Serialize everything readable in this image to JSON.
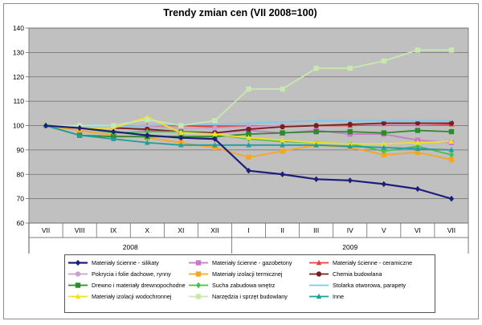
{
  "chart_data": {
    "type": "line",
    "title": "Trendy zmian cen (VII 2008=100)",
    "x": [
      "VII",
      "VIII",
      "IX",
      "X",
      "XI",
      "XII",
      "I",
      "II",
      "III",
      "IV",
      "V",
      "VI",
      "VII"
    ],
    "year_groups": [
      {
        "label": "2008",
        "from": 0,
        "to": 5
      },
      {
        "label": "2009",
        "from": 6,
        "to": 12
      }
    ],
    "ylim": [
      60,
      140
    ],
    "yticks": [
      60,
      70,
      80,
      90,
      100,
      110,
      120,
      130,
      140
    ],
    "grid": true,
    "legend": "bottom",
    "series": [
      {
        "name": "Materiały ścienne - silikaty",
        "color": "#1f1f7a",
        "marker": "diamond",
        "values": [
          100,
          99,
          97.5,
          96,
          95,
          94.5,
          81.5,
          80,
          78,
          77.5,
          76,
          74,
          70
        ]
      },
      {
        "name": "Materiały ścienne - gazobetony",
        "color": "#c879c8",
        "marker": "square",
        "values": [
          100,
          99.5,
          99.5,
          98,
          97.5,
          97,
          98,
          97,
          98,
          96.5,
          96.5,
          94,
          93
        ]
      },
      {
        "name": "Materiały ścienne - ceramiczne",
        "color": "#e8413b",
        "marker": "triangle",
        "values": [
          100,
          99.5,
          99.5,
          100,
          100,
          99.5,
          99.5,
          100,
          100,
          100,
          100.5,
          100.5,
          100.5
        ]
      },
      {
        "name": "Pokrycia i folie dachowe, rynny",
        "color": "#c7a0cf",
        "marker": "circle",
        "values": [
          100,
          99.5,
          100,
          99.5,
          99,
          99,
          99.5,
          100,
          100,
          100.5,
          100.5,
          100.5,
          101
        ]
      },
      {
        "name": "Materiały izolacji termicznej",
        "color": "#f5a623",
        "marker": "square",
        "values": [
          100,
          98,
          96,
          95,
          93,
          91,
          87,
          89.5,
          92,
          91,
          88,
          89,
          86
        ]
      },
      {
        "name": "Chemia budowlana",
        "color": "#7a1f1f",
        "marker": "circle",
        "values": [
          100,
          99.5,
          99,
          98.5,
          97.5,
          97,
          98.5,
          99.5,
          100,
          100.5,
          101,
          101,
          101
        ]
      },
      {
        "name": "Drewno i materiały drewnopochodne",
        "color": "#2f8a2f",
        "marker": "square",
        "values": [
          100,
          96,
          95.5,
          95.5,
          95.5,
          95.5,
          96.5,
          97,
          97.5,
          97.5,
          97,
          98,
          97.5
        ]
      },
      {
        "name": "Sucha zabudowa wnętrz",
        "color": "#4cbf4c",
        "marker": "diamond",
        "values": [
          100,
          99,
          97,
          97.5,
          97.5,
          96.5,
          94.5,
          93.5,
          93,
          92.5,
          89.5,
          91.5,
          88
        ]
      },
      {
        "name": "Stolarka otworowa, parapety",
        "color": "#7fc8e8",
        "marker": "none",
        "values": [
          100,
          99.5,
          99.5,
          100,
          100.5,
          100.5,
          101,
          101.5,
          102,
          102,
          102,
          102,
          102
        ]
      },
      {
        "name": "Materiały izolacji wodochronnej",
        "color": "#f5e01f",
        "marker": "triangle",
        "values": [
          100,
          99,
          99,
          103.5,
          97,
          96.5,
          95,
          94,
          93,
          92.5,
          92.5,
          93,
          93.5
        ]
      },
      {
        "name": "Narzędzia i sprzęt budowlany",
        "color": "#c8e8b0",
        "marker": "square",
        "values": [
          100,
          100,
          100,
          102.5,
          100,
          102,
          115,
          115,
          123.5,
          123.5,
          126.5,
          131,
          131
        ]
      },
      {
        "name": "Inne",
        "color": "#1e9e9e",
        "marker": "triangle",
        "values": [
          100,
          96,
          94.5,
          93,
          92,
          92,
          92,
          92,
          92,
          91.5,
          91,
          90.5,
          90
        ]
      }
    ]
  }
}
